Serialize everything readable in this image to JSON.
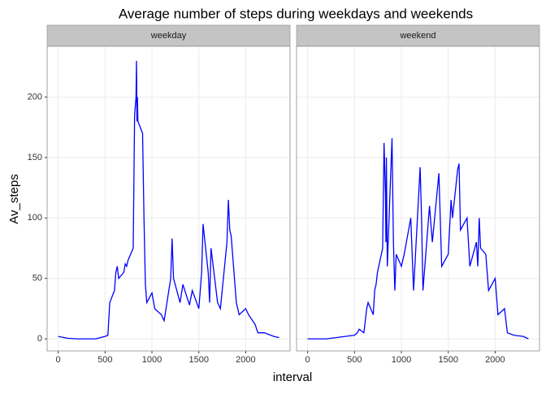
{
  "chart_data": {
    "type": "line",
    "facet": true,
    "title": "Average number of steps during weekdays and weekends",
    "x_label": "interval",
    "y_label": "Av_steps",
    "x": [
      0,
      100,
      200,
      300,
      400,
      500,
      530,
      550,
      600,
      615,
      630,
      645,
      700,
      715,
      730,
      745,
      800,
      815,
      830,
      835,
      840,
      845,
      850,
      900,
      915,
      930,
      945,
      1000,
      1030,
      1100,
      1130,
      1200,
      1215,
      1230,
      1300,
      1330,
      1400,
      1430,
      1500,
      1530,
      1545,
      1600,
      1615,
      1630,
      1700,
      1730,
      1800,
      1815,
      1830,
      1845,
      1900,
      1930,
      2000,
      2030,
      2100,
      2130,
      2200,
      2300,
      2355
    ],
    "series": [
      {
        "name": "weekday",
        "color": "#0000ff",
        "values": [
          2,
          0.5,
          0,
          0,
          0,
          2,
          3,
          30,
          40,
          55,
          60,
          50,
          55,
          62,
          60,
          65,
          75,
          185,
          200,
          230,
          180,
          200,
          180,
          170,
          100,
          45,
          30,
          38,
          25,
          20,
          15,
          50,
          83,
          50,
          30,
          45,
          28,
          40,
          25,
          55,
          95,
          55,
          30,
          75,
          30,
          25,
          80,
          115,
          90,
          85,
          30,
          20,
          25,
          20,
          12,
          5,
          5,
          2,
          1
        ]
      },
      {
        "name": "weekend",
        "color": "#0000ff",
        "values": [
          0,
          0,
          0,
          1,
          2,
          3,
          5,
          8,
          5,
          15,
          25,
          30,
          20,
          40,
          45,
          55,
          75,
          162,
          120,
          80,
          150,
          100,
          60,
          166,
          80,
          40,
          70,
          60,
          70,
          100,
          40,
          142,
          100,
          40,
          110,
          80,
          137,
          60,
          70,
          115,
          100,
          140,
          145,
          90,
          100,
          60,
          80,
          60,
          100,
          75,
          70,
          40,
          50,
          20,
          25,
          5,
          3,
          2,
          0
        ]
      }
    ],
    "xlim": [
      -118,
      2473
    ],
    "ylim": [
      -10,
      242
    ],
    "xticks": [
      0,
      500,
      1000,
      1500,
      2000
    ],
    "yticks": [
      0,
      50,
      100,
      150,
      200
    ],
    "grid": true
  }
}
